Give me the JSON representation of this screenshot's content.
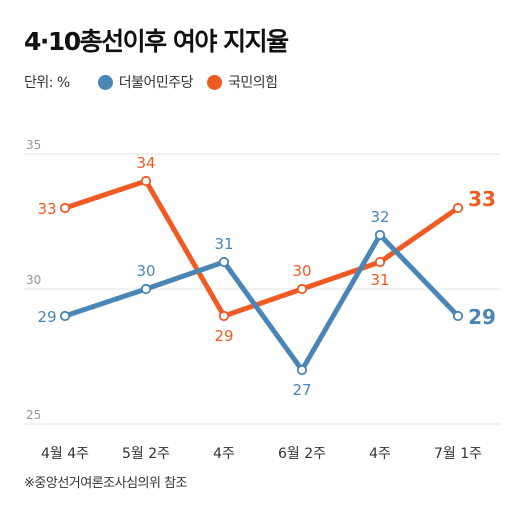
{
  "title": "4·10총선이후 여야 지지율",
  "legend": {
    "unit_label": "단위: %",
    "items": [
      {
        "name": "더불어민주당",
        "color": "#4a86b5"
      },
      {
        "name": "국민의힘",
        "color": "#f05a23"
      }
    ]
  },
  "source": "※중앙선거여론조사심의위 참조",
  "chart_data": {
    "type": "line",
    "categories": [
      "4월 4주",
      "5월 2주",
      "4주",
      "6월 2주",
      "4주",
      "7월 1주"
    ],
    "ylim": [
      25,
      35
    ],
    "yticks": [
      25,
      30,
      35
    ],
    "grid": true,
    "series": [
      {
        "name": "더불어민주당",
        "color": "#4a86b5",
        "values": [
          29,
          30,
          31,
          27,
          32,
          29
        ]
      },
      {
        "name": "국민의힘",
        "color": "#f05a23",
        "values": [
          33,
          34,
          29,
          30,
          31,
          33
        ]
      }
    ]
  }
}
